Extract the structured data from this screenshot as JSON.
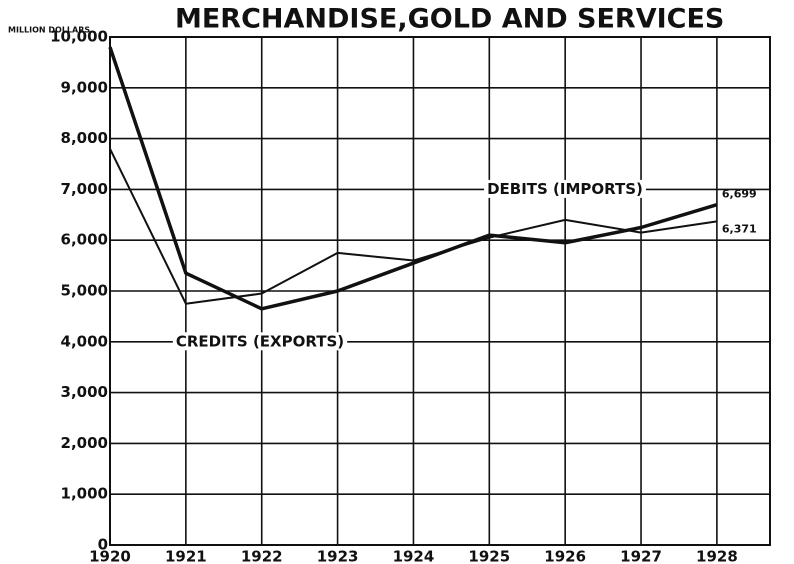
{
  "chart_data": {
    "type": "line",
    "title": "MERCHANDISE,GOLD AND SERVICES",
    "y_axis_label": "MILLION DOLLARS",
    "x": [
      1920,
      1921,
      1922,
      1923,
      1924,
      1925,
      1926,
      1927,
      1928
    ],
    "series": [
      {
        "name": "CREDITS (EXPORTS)",
        "color": "#111111",
        "width": 3.5,
        "values": [
          9800,
          5350,
          4650,
          5000,
          5550,
          6100,
          5950,
          6250,
          6699
        ],
        "value_labels": [
          null,
          null,
          null,
          null,
          null,
          null,
          null,
          null,
          "6,699"
        ]
      },
      {
        "name": "DEBITS (IMPORTS)",
        "color": "#111111",
        "width": 2,
        "values": [
          7800,
          4750,
          4950,
          5750,
          5600,
          6050,
          6400,
          6150,
          6371
        ],
        "value_labels": [
          null,
          null,
          null,
          null,
          null,
          null,
          null,
          null,
          "6,371"
        ]
      }
    ],
    "xlim": [
      1920,
      1928.7
    ],
    "xticks": [
      1920,
      1921,
      1922,
      1923,
      1924,
      1925,
      1926,
      1927,
      1928
    ],
    "ylim": [
      0,
      10000
    ],
    "yticks": [
      0,
      {
        "value": 1000,
        "label": "1,000"
      },
      {
        "value": 2000,
        "label": "2,000"
      },
      {
        "value": 3000,
        "label": "3,000"
      },
      {
        "value": 4000,
        "label": "4,000"
      },
      {
        "value": 5000,
        "label": "5,000"
      },
      {
        "value": 6000,
        "label": "6,000"
      },
      {
        "value": 7000,
        "label": "7,000"
      },
      {
        "value": 8000,
        "label": "8,000"
      },
      {
        "value": 9000,
        "label": "9,000"
      },
      {
        "value": 10000,
        "label": "10,000"
      }
    ],
    "grid": true
  }
}
